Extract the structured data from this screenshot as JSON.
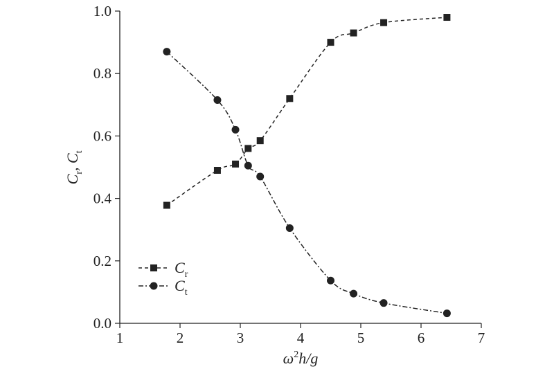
{
  "chart_data": {
    "type": "line",
    "title": "",
    "xlabel": {
      "parts": [
        "ω",
        "2",
        "h/g"
      ]
    },
    "ylabel": {
      "parts": [
        "C",
        "r",
        ", C",
        "t"
      ]
    },
    "xlim": [
      1,
      7
    ],
    "ylim": [
      0,
      1
    ],
    "xticks": [
      "1",
      "2",
      "3",
      "4",
      "5",
      "6",
      "7"
    ],
    "yticks": [
      "0.0",
      "0.2",
      "0.4",
      "0.6",
      "0.8",
      "1.0"
    ],
    "grid": false,
    "legend_position": "bottom-left",
    "series": [
      {
        "name": "Cr",
        "name_main": "C",
        "name_sub": "r",
        "marker": "square",
        "line_style": "dashed",
        "x": [
          1.78,
          2.62,
          2.92,
          3.13,
          3.33,
          3.82,
          4.5,
          4.88,
          5.38,
          6.43
        ],
        "y": [
          0.378,
          0.49,
          0.51,
          0.56,
          0.585,
          0.72,
          0.9,
          0.93,
          0.963,
          0.98
        ]
      },
      {
        "name": "Ct",
        "name_main": "C",
        "name_sub": "t",
        "marker": "circle",
        "line_style": "dash-dot",
        "x": [
          1.78,
          2.62,
          2.92,
          3.13,
          3.33,
          3.82,
          4.5,
          4.88,
          5.38,
          6.43
        ],
        "y": [
          0.87,
          0.715,
          0.62,
          0.505,
          0.47,
          0.305,
          0.137,
          0.095,
          0.065,
          0.032
        ]
      }
    ]
  }
}
